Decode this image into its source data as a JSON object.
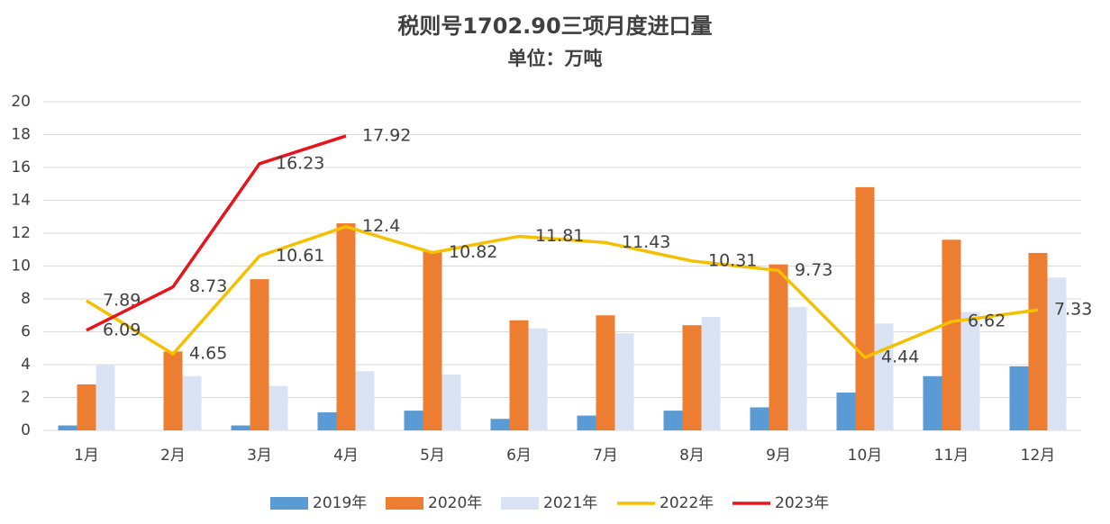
{
  "chart_data": {
    "type": "bar",
    "title": "税则号1702.90三项月度进口量",
    "subtitle": "单位：万吨",
    "categories": [
      "1月",
      "2月",
      "3月",
      "4月",
      "5月",
      "6月",
      "7月",
      "8月",
      "9月",
      "10月",
      "11月",
      "12月"
    ],
    "series": [
      {
        "name": "2019年",
        "type": "bar",
        "color": "#5b9bd5",
        "values": [
          0.3,
          0,
          0.3,
          1.1,
          1.2,
          0.7,
          0.9,
          1.2,
          1.4,
          2.3,
          3.3,
          3.9
        ]
      },
      {
        "name": "2020年",
        "type": "bar",
        "color": "#ed7d31",
        "values": [
          2.8,
          4.8,
          9.2,
          12.6,
          10.9,
          6.7,
          7.0,
          6.4,
          10.1,
          14.8,
          11.6,
          10.8
        ]
      },
      {
        "name": "2021年",
        "type": "bar",
        "color": "#dae3f3",
        "values": [
          4.0,
          3.3,
          2.7,
          3.6,
          3.4,
          6.2,
          5.9,
          6.9,
          7.5,
          6.5,
          7.2,
          9.3
        ]
      },
      {
        "name": "2022年",
        "type": "line",
        "color": "#f5c000",
        "values": [
          7.89,
          4.65,
          10.61,
          12.4,
          10.82,
          11.81,
          11.43,
          10.31,
          9.73,
          4.44,
          6.62,
          7.33
        ],
        "data_labels": true
      },
      {
        "name": "2023年",
        "type": "line",
        "color": "#e8141c",
        "values": [
          6.09,
          8.73,
          16.23,
          17.92,
          null,
          null,
          null,
          null,
          null,
          null,
          null,
          null
        ],
        "data_labels": true
      }
    ],
    "ylim": [
      0,
      20
    ],
    "yticks": [
      0,
      2,
      4,
      6,
      8,
      10,
      12,
      14,
      16,
      18,
      20
    ],
    "grid": true,
    "legend": "bottom"
  }
}
